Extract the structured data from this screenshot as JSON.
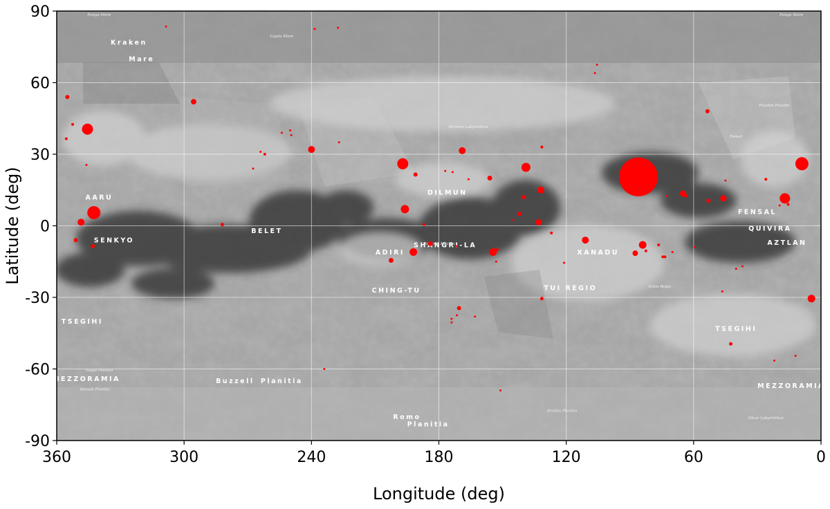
{
  "map": {
    "xlabel": "Longitude (deg)",
    "ylabel": "Latitude (deg)",
    "x_ticks": [
      "360",
      "300",
      "240",
      "180",
      "120",
      "60",
      "0"
    ],
    "y_ticks": [
      "90",
      "60",
      "30",
      "0",
      "-30",
      "-60",
      "-90"
    ],
    "x_range": [
      360,
      0
    ],
    "y_range": [
      -90,
      90
    ],
    "grid": true
  },
  "chart_data": {
    "type": "scatter",
    "xlabel": "Longitude (deg)",
    "ylabel": "Latitude (deg)",
    "xlim": [
      360,
      0
    ],
    "ylim": [
      -90,
      90
    ],
    "grid": true,
    "point_color": "#ff0000",
    "points": [
      {
        "lon": 345.5,
        "lat": 40.5,
        "r": 8
      },
      {
        "lon": 355,
        "lat": 54,
        "r": 3
      },
      {
        "lon": 352.5,
        "lat": 42.5,
        "r": 2
      },
      {
        "lon": 355.5,
        "lat": 36.5,
        "r": 2
      },
      {
        "lon": 346,
        "lat": 25.5,
        "r": 1.5
      },
      {
        "lon": 342.5,
        "lat": 5.5,
        "r": 9.5
      },
      {
        "lon": 348.5,
        "lat": 1.5,
        "r": 5
      },
      {
        "lon": 351,
        "lat": -6,
        "r": 3
      },
      {
        "lon": 343,
        "lat": -8.5,
        "r": 3
      },
      {
        "lon": 308.5,
        "lat": 83.5,
        "r": 1.5
      },
      {
        "lon": 295.5,
        "lat": 52,
        "r": 4
      },
      {
        "lon": 282,
        "lat": 0.5,
        "r": 2.5
      },
      {
        "lon": 267.5,
        "lat": 24,
        "r": 1.5
      },
      {
        "lon": 264,
        "lat": 31,
        "r": 1.5
      },
      {
        "lon": 262,
        "lat": 30,
        "r": 2
      },
      {
        "lon": 254,
        "lat": 39,
        "r": 1.5
      },
      {
        "lon": 250,
        "lat": 40,
        "r": 1.5
      },
      {
        "lon": 249.5,
        "lat": 38,
        "r": 1.5
      },
      {
        "lon": 240,
        "lat": 32,
        "r": 5
      },
      {
        "lon": 238.5,
        "lat": 82.5,
        "r": 1.5
      },
      {
        "lon": 227.5,
        "lat": 83,
        "r": 1.5
      },
      {
        "lon": 227,
        "lat": 35,
        "r": 1.5
      },
      {
        "lon": 234,
        "lat": -60,
        "r": 1.5
      },
      {
        "lon": 197,
        "lat": 26,
        "r": 8
      },
      {
        "lon": 196,
        "lat": 7,
        "r": 6
      },
      {
        "lon": 191,
        "lat": 21.5,
        "r": 3
      },
      {
        "lon": 187,
        "lat": 0.5,
        "r": 2
      },
      {
        "lon": 192,
        "lat": -11,
        "r": 5.5
      },
      {
        "lon": 184,
        "lat": -7.5,
        "r": 3.5
      },
      {
        "lon": 202.5,
        "lat": -14.5,
        "r": 3.5
      },
      {
        "lon": 177,
        "lat": 23,
        "r": 1.5
      },
      {
        "lon": 173.5,
        "lat": 22.5,
        "r": 1.5
      },
      {
        "lon": 169,
        "lat": 31.5,
        "r": 5
      },
      {
        "lon": 166,
        "lat": 19.5,
        "r": 1.5
      },
      {
        "lon": 171.5,
        "lat": -8.5,
        "r": 1.5
      },
      {
        "lon": 170.5,
        "lat": -34.5,
        "r": 3
      },
      {
        "lon": 171.5,
        "lat": -37.5,
        "r": 1.5
      },
      {
        "lon": 174,
        "lat": -39,
        "r": 1.5
      },
      {
        "lon": 174,
        "lat": -40.5,
        "r": 1.5
      },
      {
        "lon": 163,
        "lat": -38,
        "r": 1.5
      },
      {
        "lon": 156,
        "lat": 20,
        "r": 3.5
      },
      {
        "lon": 154.5,
        "lat": -11,
        "r": 5.5
      },
      {
        "lon": 152.5,
        "lat": -10,
        "r": 2
      },
      {
        "lon": 153,
        "lat": -15,
        "r": 1.5
      },
      {
        "lon": 151,
        "lat": -69,
        "r": 1.5
      },
      {
        "lon": 145,
        "lat": 2.5,
        "r": 1.5
      },
      {
        "lon": 142,
        "lat": 5,
        "r": 3
      },
      {
        "lon": 140,
        "lat": 12,
        "r": 3
      },
      {
        "lon": 139,
        "lat": 24.5,
        "r": 6.5
      },
      {
        "lon": 133,
        "lat": 1.5,
        "r": 4.5
      },
      {
        "lon": 132,
        "lat": 15,
        "r": 5
      },
      {
        "lon": 131.5,
        "lat": 33,
        "r": 2
      },
      {
        "lon": 131.5,
        "lat": -30.5,
        "r": 2.5
      },
      {
        "lon": 127,
        "lat": -3,
        "r": 2
      },
      {
        "lon": 121,
        "lat": -15.5,
        "r": 1.5
      },
      {
        "lon": 111,
        "lat": -6,
        "r": 5
      },
      {
        "lon": 105.5,
        "lat": 67.5,
        "r": 1.5
      },
      {
        "lon": 106.5,
        "lat": 64,
        "r": 1.5
      },
      {
        "lon": 86,
        "lat": 20.5,
        "r": 28
      },
      {
        "lon": 84,
        "lat": -8,
        "r": 5.5
      },
      {
        "lon": 87.5,
        "lat": -11.5,
        "r": 4
      },
      {
        "lon": 82.5,
        "lat": -10.5,
        "r": 2
      },
      {
        "lon": 76.5,
        "lat": -8,
        "r": 2
      },
      {
        "lon": 74.5,
        "lat": -13,
        "r": 2
      },
      {
        "lon": 73.5,
        "lat": -13,
        "r": 2
      },
      {
        "lon": 70,
        "lat": -11,
        "r": 1.5
      },
      {
        "lon": 72.5,
        "lat": 12.5,
        "r": 1.5
      },
      {
        "lon": 65,
        "lat": 13.5,
        "r": 4.5
      },
      {
        "lon": 63.5,
        "lat": 12.5,
        "r": 2.5
      },
      {
        "lon": 59.5,
        "lat": -9,
        "r": 1.5
      },
      {
        "lon": 53.5,
        "lat": 48,
        "r": 3
      },
      {
        "lon": 53,
        "lat": 10.5,
        "r": 3
      },
      {
        "lon": 46,
        "lat": 11.5,
        "r": 4.5
      },
      {
        "lon": 45,
        "lat": 19,
        "r": 1.5
      },
      {
        "lon": 46.5,
        "lat": -27.5,
        "r": 1.5
      },
      {
        "lon": 42.5,
        "lat": -49.5,
        "r": 2.5
      },
      {
        "lon": 40,
        "lat": -18,
        "r": 1.5
      },
      {
        "lon": 37,
        "lat": -17,
        "r": 1.5
      },
      {
        "lon": 26,
        "lat": 19.5,
        "r": 2
      },
      {
        "lon": 19.5,
        "lat": 8.5,
        "r": 1.5
      },
      {
        "lon": 17,
        "lat": 11.5,
        "r": 7.5
      },
      {
        "lon": 15.5,
        "lat": 9,
        "r": 2
      },
      {
        "lon": 22,
        "lat": -56.5,
        "r": 1.5
      },
      {
        "lon": 9,
        "lat": 26,
        "r": 9.5
      },
      {
        "lon": 4.5,
        "lat": -30.5,
        "r": 5.5
      },
      {
        "lon": 12,
        "lat": -54.5,
        "r": 1.5
      }
    ]
  },
  "labels": {
    "regions": [
      {
        "text": "BELET",
        "lon": 261,
        "lat": -3
      },
      {
        "text": "SENKYO",
        "lon": 333,
        "lat": -7
      },
      {
        "text": "DILMUN",
        "lon": 176,
        "lat": 13
      },
      {
        "text": "SHANGRI-LA",
        "lon": 177,
        "lat": -9
      },
      {
        "text": "ADIRI",
        "lon": 203,
        "lat": -12
      },
      {
        "text": "XANADU",
        "lon": 105,
        "lat": -12
      },
      {
        "text": "CHING-TU",
        "lon": 200,
        "lat": -28
      },
      {
        "text": "TSEGIHI",
        "lon": 348,
        "lat": -41
      },
      {
        "text": "TSEGIHI",
        "lon": 40,
        "lat": -44
      },
      {
        "text": "FENSAL",
        "lon": 30,
        "lat": 5
      },
      {
        "text": "QUIVIRA",
        "lon": 24,
        "lat": -2
      },
      {
        "text": "AZTLAN",
        "lon": 16,
        "lat": -8
      },
      {
        "text": "AARU",
        "lon": 340,
        "lat": 11
      },
      {
        "text": "TUI REGIO",
        "lon": 118,
        "lat": -27
      },
      {
        "text": "MEZZORAMIA",
        "lon": 346,
        "lat": -65
      },
      {
        "text": "MEZZORAMIA",
        "lon": 14,
        "lat": -68
      },
      {
        "text": "Buzzell",
        "lon": 276,
        "lat": -66
      },
      {
        "text": "Planitia",
        "lon": 254,
        "lat": -66
      },
      {
        "text": "Romo",
        "lon": 195,
        "lat": -81
      },
      {
        "text": "Planitia",
        "lon": 185,
        "lat": -84
      },
      {
        "text": "Mare",
        "lon": 320,
        "lat": 69
      },
      {
        "text": "Kraken",
        "lon": 326,
        "lat": 76
      }
    ],
    "features": [
      {
        "text": "Punga Mare",
        "lon": 340,
        "lat": 88
      },
      {
        "text": "Punga Mare",
        "lon": 14,
        "lat": 88
      },
      {
        "text": "Hagal Planitia",
        "lon": 340,
        "lat": -61
      },
      {
        "text": "Rossak Planitia",
        "lon": 342,
        "lat": -69
      },
      {
        "text": "Ligeia Mare",
        "lon": 254,
        "lat": 79
      },
      {
        "text": "Polaznik Macula",
        "lon": 180,
        "lat": -8
      },
      {
        "text": "Hotei Regio",
        "lon": 76,
        "lat": -26
      },
      {
        "text": "Richese Labyrinthus",
        "lon": 166,
        "lat": 41
      },
      {
        "text": "Arrakis Planitia",
        "lon": 122,
        "lat": -78
      },
      {
        "text": "Sikun Labyrinthus",
        "lon": 26,
        "lat": -81
      },
      {
        "text": "Fensal",
        "lon": 40,
        "lat": 37
      },
      {
        "text": "Puwitin Planitia",
        "lon": 22,
        "lat": 50
      }
    ]
  }
}
